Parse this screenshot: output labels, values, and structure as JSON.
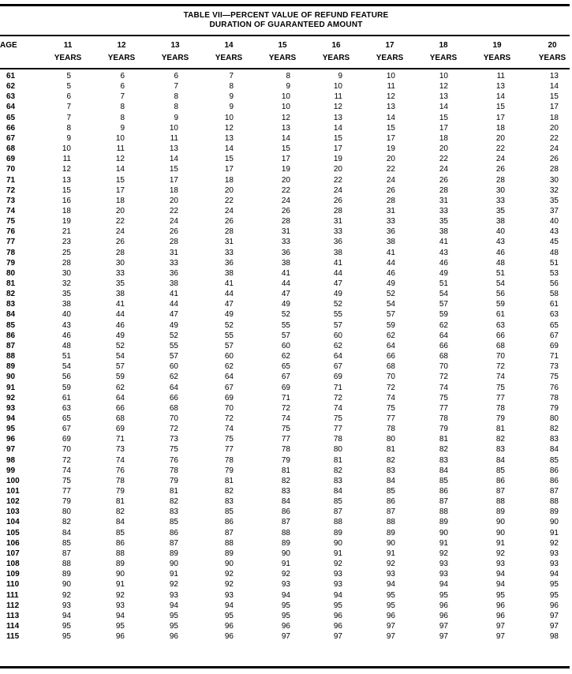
{
  "title": {
    "line1": "TABLE VII—PERCENT VALUE OF REFUND FEATURE",
    "line2": "DURATION OF GUARANTEED AMOUNT"
  },
  "header": {
    "age_label": "AGE",
    "columns": [
      {
        "number": "11",
        "unit": "YEARS"
      },
      {
        "number": "12",
        "unit": "YEARS"
      },
      {
        "number": "13",
        "unit": "YEARS"
      },
      {
        "number": "14",
        "unit": "YEARS"
      },
      {
        "number": "15",
        "unit": "YEARS"
      },
      {
        "number": "16",
        "unit": "YEARS"
      },
      {
        "number": "17",
        "unit": "YEARS"
      },
      {
        "number": "18",
        "unit": "YEARS"
      },
      {
        "number": "19",
        "unit": "YEARS"
      },
      {
        "number": "20",
        "unit": "YEARS"
      }
    ]
  },
  "rows": [
    {
      "age": "61",
      "values": [
        "5",
        "6",
        "6",
        "7",
        "8",
        "9",
        "10",
        "10",
        "11",
        "13"
      ]
    },
    {
      "age": "62",
      "values": [
        "5",
        "6",
        "7",
        "8",
        "9",
        "10",
        "11",
        "12",
        "13",
        "14"
      ]
    },
    {
      "age": "63",
      "values": [
        "6",
        "7",
        "8",
        "9",
        "10",
        "11",
        "12",
        "13",
        "14",
        "15"
      ]
    },
    {
      "age": "64",
      "values": [
        "7",
        "8",
        "8",
        "9",
        "10",
        "12",
        "13",
        "14",
        "15",
        "17"
      ]
    },
    {
      "age": "65",
      "values": [
        "7",
        "8",
        "9",
        "10",
        "12",
        "13",
        "14",
        "15",
        "17",
        "18"
      ]
    },
    {
      "age": "66",
      "values": [
        "8",
        "9",
        "10",
        "12",
        "13",
        "14",
        "15",
        "17",
        "18",
        "20"
      ]
    },
    {
      "age": "67",
      "values": [
        "9",
        "10",
        "11",
        "13",
        "14",
        "15",
        "17",
        "18",
        "20",
        "22"
      ]
    },
    {
      "age": "68",
      "values": [
        "10",
        "11",
        "13",
        "14",
        "15",
        "17",
        "19",
        "20",
        "22",
        "24"
      ]
    },
    {
      "age": "69",
      "values": [
        "11",
        "12",
        "14",
        "15",
        "17",
        "19",
        "20",
        "22",
        "24",
        "26"
      ]
    },
    {
      "age": "70",
      "values": [
        "12",
        "14",
        "15",
        "17",
        "19",
        "20",
        "22",
        "24",
        "26",
        "28"
      ]
    },
    {
      "age": "71",
      "values": [
        "13",
        "15",
        "17",
        "18",
        "20",
        "22",
        "24",
        "26",
        "28",
        "30"
      ]
    },
    {
      "age": "72",
      "values": [
        "15",
        "17",
        "18",
        "20",
        "22",
        "24",
        "26",
        "28",
        "30",
        "32"
      ]
    },
    {
      "age": "73",
      "values": [
        "16",
        "18",
        "20",
        "22",
        "24",
        "26",
        "28",
        "31",
        "33",
        "35"
      ]
    },
    {
      "age": "74",
      "values": [
        "18",
        "20",
        "22",
        "24",
        "26",
        "28",
        "31",
        "33",
        "35",
        "37"
      ]
    },
    {
      "age": "75",
      "values": [
        "19",
        "22",
        "24",
        "26",
        "28",
        "31",
        "33",
        "35",
        "38",
        "40"
      ]
    },
    {
      "age": "76",
      "values": [
        "21",
        "24",
        "26",
        "28",
        "31",
        "33",
        "36",
        "38",
        "40",
        "43"
      ]
    },
    {
      "age": "77",
      "values": [
        "23",
        "26",
        "28",
        "31",
        "33",
        "36",
        "38",
        "41",
        "43",
        "45"
      ]
    },
    {
      "age": "78",
      "values": [
        "25",
        "28",
        "31",
        "33",
        "36",
        "38",
        "41",
        "43",
        "46",
        "48"
      ]
    },
    {
      "age": "79",
      "values": [
        "28",
        "30",
        "33",
        "36",
        "38",
        "41",
        "44",
        "46",
        "48",
        "51"
      ]
    },
    {
      "age": "80",
      "values": [
        "30",
        "33",
        "36",
        "38",
        "41",
        "44",
        "46",
        "49",
        "51",
        "53"
      ]
    },
    {
      "age": "81",
      "values": [
        "32",
        "35",
        "38",
        "41",
        "44",
        "47",
        "49",
        "51",
        "54",
        "56"
      ]
    },
    {
      "age": "82",
      "values": [
        "35",
        "38",
        "41",
        "44",
        "47",
        "49",
        "52",
        "54",
        "56",
        "58"
      ]
    },
    {
      "age": "83",
      "values": [
        "38",
        "41",
        "44",
        "47",
        "49",
        "52",
        "54",
        "57",
        "59",
        "61"
      ]
    },
    {
      "age": "84",
      "values": [
        "40",
        "44",
        "47",
        "49",
        "52",
        "55",
        "57",
        "59",
        "61",
        "63"
      ]
    },
    {
      "age": "85",
      "values": [
        "43",
        "46",
        "49",
        "52",
        "55",
        "57",
        "59",
        "62",
        "63",
        "65"
      ]
    },
    {
      "age": "86",
      "values": [
        "46",
        "49",
        "52",
        "55",
        "57",
        "60",
        "62",
        "64",
        "66",
        "67"
      ]
    },
    {
      "age": "87",
      "values": [
        "48",
        "52",
        "55",
        "57",
        "60",
        "62",
        "64",
        "66",
        "68",
        "69"
      ]
    },
    {
      "age": "88",
      "values": [
        "51",
        "54",
        "57",
        "60",
        "62",
        "64",
        "66",
        "68",
        "70",
        "71"
      ]
    },
    {
      "age": "89",
      "values": [
        "54",
        "57",
        "60",
        "62",
        "65",
        "67",
        "68",
        "70",
        "72",
        "73"
      ]
    },
    {
      "age": "90",
      "values": [
        "56",
        "59",
        "62",
        "64",
        "67",
        "69",
        "70",
        "72",
        "74",
        "75"
      ]
    },
    {
      "age": "91",
      "values": [
        "59",
        "62",
        "64",
        "67",
        "69",
        "71",
        "72",
        "74",
        "75",
        "76"
      ]
    },
    {
      "age": "92",
      "values": [
        "61",
        "64",
        "66",
        "69",
        "71",
        "72",
        "74",
        "75",
        "77",
        "78"
      ]
    },
    {
      "age": "93",
      "values": [
        "63",
        "66",
        "68",
        "70",
        "72",
        "74",
        "75",
        "77",
        "78",
        "79"
      ]
    },
    {
      "age": "94",
      "values": [
        "65",
        "68",
        "70",
        "72",
        "74",
        "75",
        "77",
        "78",
        "79",
        "80"
      ]
    },
    {
      "age": "95",
      "values": [
        "67",
        "69",
        "72",
        "74",
        "75",
        "77",
        "78",
        "79",
        "81",
        "82"
      ]
    },
    {
      "age": "96",
      "values": [
        "69",
        "71",
        "73",
        "75",
        "77",
        "78",
        "80",
        "81",
        "82",
        "83"
      ]
    },
    {
      "age": "97",
      "values": [
        "70",
        "73",
        "75",
        "77",
        "78",
        "80",
        "81",
        "82",
        "83",
        "84"
      ]
    },
    {
      "age": "98",
      "values": [
        "72",
        "74",
        "76",
        "78",
        "79",
        "81",
        "82",
        "83",
        "84",
        "85"
      ]
    },
    {
      "age": "99",
      "values": [
        "74",
        "76",
        "78",
        "79",
        "81",
        "82",
        "83",
        "84",
        "85",
        "86"
      ]
    },
    {
      "age": "100",
      "values": [
        "75",
        "78",
        "79",
        "81",
        "82",
        "83",
        "84",
        "85",
        "86",
        "86"
      ]
    },
    {
      "age": "101",
      "values": [
        "77",
        "79",
        "81",
        "82",
        "83",
        "84",
        "85",
        "86",
        "87",
        "87"
      ]
    },
    {
      "age": "102",
      "values": [
        "79",
        "81",
        "82",
        "83",
        "84",
        "85",
        "86",
        "87",
        "88",
        "88"
      ]
    },
    {
      "age": "103",
      "values": [
        "80",
        "82",
        "83",
        "85",
        "86",
        "87",
        "87",
        "88",
        "89",
        "89"
      ]
    },
    {
      "age": "104",
      "values": [
        "82",
        "84",
        "85",
        "86",
        "87",
        "88",
        "88",
        "89",
        "90",
        "90"
      ]
    },
    {
      "age": "105",
      "values": [
        "84",
        "85",
        "86",
        "87",
        "88",
        "89",
        "89",
        "90",
        "90",
        "91"
      ]
    },
    {
      "age": "106",
      "values": [
        "85",
        "86",
        "87",
        "88",
        "89",
        "90",
        "90",
        "91",
        "91",
        "92"
      ]
    },
    {
      "age": "107",
      "values": [
        "87",
        "88",
        "89",
        "89",
        "90",
        "91",
        "91",
        "92",
        "92",
        "93"
      ]
    },
    {
      "age": "108",
      "values": [
        "88",
        "89",
        "90",
        "90",
        "91",
        "92",
        "92",
        "93",
        "93",
        "93"
      ]
    },
    {
      "age": "109",
      "values": [
        "89",
        "90",
        "91",
        "92",
        "92",
        "93",
        "93",
        "93",
        "94",
        "94"
      ]
    },
    {
      "age": "110",
      "values": [
        "90",
        "91",
        "92",
        "92",
        "93",
        "93",
        "94",
        "94",
        "94",
        "95"
      ]
    },
    {
      "age": "111",
      "values": [
        "92",
        "92",
        "93",
        "93",
        "94",
        "94",
        "95",
        "95",
        "95",
        "95"
      ]
    },
    {
      "age": "112",
      "values": [
        "93",
        "93",
        "94",
        "94",
        "95",
        "95",
        "95",
        "96",
        "96",
        "96"
      ]
    },
    {
      "age": "113",
      "values": [
        "94",
        "94",
        "95",
        "95",
        "95",
        "96",
        "96",
        "96",
        "96",
        "97"
      ]
    },
    {
      "age": "114",
      "values": [
        "95",
        "95",
        "95",
        "96",
        "96",
        "96",
        "97",
        "97",
        "97",
        "97"
      ]
    },
    {
      "age": "115",
      "values": [
        "95",
        "96",
        "96",
        "96",
        "97",
        "97",
        "97",
        "97",
        "97",
        "98"
      ]
    }
  ]
}
